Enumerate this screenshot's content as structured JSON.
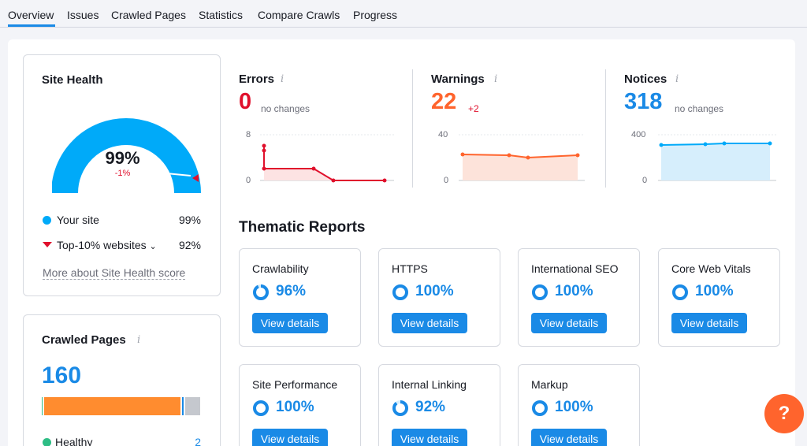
{
  "tabs": [
    "Overview",
    "Issues",
    "Crawled Pages",
    "Statistics",
    "Compare Crawls",
    "Progress"
  ],
  "site_health": {
    "title": "Site Health",
    "score": "99%",
    "delta": "-1%",
    "gauge_fraction": 0.99,
    "your_site_label": "Your site",
    "your_site_value": "99%",
    "top10_label": "Top-10% websites",
    "top10_value": "92%",
    "more_link": "More about Site Health score"
  },
  "metrics": {
    "errors": {
      "label": "Errors",
      "value": "0",
      "change": "no changes",
      "ymax": "8",
      "ymin": "0",
      "series": [
        6,
        2,
        2,
        0,
        0
      ]
    },
    "warnings": {
      "label": "Warnings",
      "value": "22",
      "change": "+2",
      "ymax": "40",
      "ymin": "0",
      "series": [
        22,
        22,
        20,
        22
      ]
    },
    "notices": {
      "label": "Notices",
      "value": "318",
      "change": "no changes",
      "ymax": "400",
      "ymin": "0",
      "series": [
        310,
        312,
        318,
        318
      ]
    }
  },
  "thematic": {
    "title": "Thematic Reports",
    "button_label": "View details",
    "reports": [
      {
        "name": "Crawlability",
        "pct": "96%",
        "fraction": 0.96
      },
      {
        "name": "HTTPS",
        "pct": "100%",
        "fraction": 1.0
      },
      {
        "name": "International SEO",
        "pct": "100%",
        "fraction": 1.0
      },
      {
        "name": "Core Web Vitals",
        "pct": "100%",
        "fraction": 1.0
      },
      {
        "name": "Site Performance",
        "pct": "100%",
        "fraction": 1.0
      },
      {
        "name": "Internal Linking",
        "pct": "92%",
        "fraction": 0.92
      },
      {
        "name": "Markup",
        "pct": "100%",
        "fraction": 1.0
      }
    ]
  },
  "crawled_pages": {
    "title": "Crawled Pages",
    "count": "160",
    "healthy_label": "Healthy",
    "healthy_value": "2",
    "segments": [
      {
        "color": "#2ebd85",
        "fraction": 0.015
      },
      {
        "color": "#ff8c2f",
        "fraction": 0.86
      },
      {
        "color": "#1a8ae6",
        "fraction": 0.02
      },
      {
        "color": "#c5c8ce",
        "fraction": 0.105
      }
    ]
  },
  "colors": {
    "accent": "#1a8ae6",
    "error": "#e0102c",
    "warning": "#ff642d",
    "notice": "#1a8ae6",
    "healthy": "#2ebd85",
    "help": "#ff642d"
  },
  "help_label": "?"
}
